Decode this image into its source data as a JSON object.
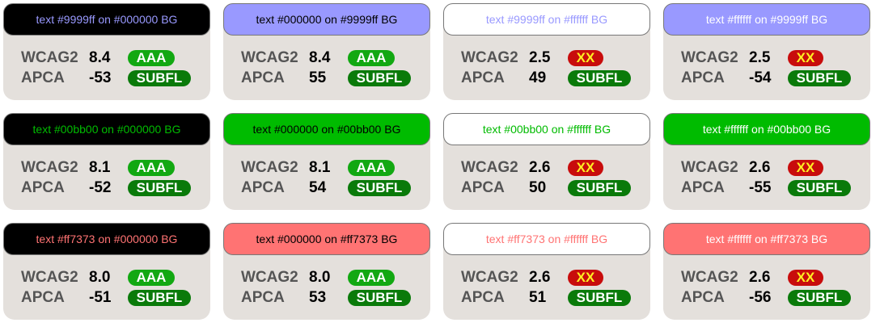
{
  "row_labels": {
    "wcag": "WCAG2",
    "apca": "APCA"
  },
  "cards": [
    {
      "header": "text #9999ff on #000000 BG",
      "fg": "#9999ff",
      "bg": "#000000",
      "wcag": "8.4",
      "wcag_badge": "AAA",
      "apca": "-53",
      "apca_badge": "SUBFL"
    },
    {
      "header": "text #000000 on #9999ff BG",
      "fg": "#000000",
      "bg": "#9999ff",
      "wcag": "8.4",
      "wcag_badge": "AAA",
      "apca": "55",
      "apca_badge": "SUBFL"
    },
    {
      "header": "text #9999ff on #ffffff BG",
      "fg": "#9999ff",
      "bg": "#ffffff",
      "wcag": "2.5",
      "wcag_badge": "XX",
      "apca": "49",
      "apca_badge": "SUBFL"
    },
    {
      "header": "text #ffffff on #9999ff BG",
      "fg": "#ffffff",
      "bg": "#9999ff",
      "wcag": "2.5",
      "wcag_badge": "XX",
      "apca": "-54",
      "apca_badge": "SUBFL"
    },
    {
      "header": "text #00bb00 on #000000 BG",
      "fg": "#00bb00",
      "bg": "#000000",
      "wcag": "8.1",
      "wcag_badge": "AAA",
      "apca": "-52",
      "apca_badge": "SUBFL"
    },
    {
      "header": "text #000000 on #00bb00 BG",
      "fg": "#000000",
      "bg": "#00bb00",
      "wcag": "8.1",
      "wcag_badge": "AAA",
      "apca": "54",
      "apca_badge": "SUBFL"
    },
    {
      "header": "text #00bb00 on #ffffff BG",
      "fg": "#00bb00",
      "bg": "#ffffff",
      "wcag": "2.6",
      "wcag_badge": "XX",
      "apca": "50",
      "apca_badge": "SUBFL"
    },
    {
      "header": "text #ffffff on #00bb00 BG",
      "fg": "#ffffff",
      "bg": "#00bb00",
      "wcag": "2.6",
      "wcag_badge": "XX",
      "apca": "-55",
      "apca_badge": "SUBFL"
    },
    {
      "header": "text #ff7373 on #000000 BG",
      "fg": "#ff7373",
      "bg": "#000000",
      "wcag": "8.0",
      "wcag_badge": "AAA",
      "apca": "-51",
      "apca_badge": "SUBFL"
    },
    {
      "header": "text #000000 on #ff7373 BG",
      "fg": "#000000",
      "bg": "#ff7373",
      "wcag": "8.0",
      "wcag_badge": "AAA",
      "apca": "53",
      "apca_badge": "SUBFL"
    },
    {
      "header": "text #ff7373 on #ffffff BG",
      "fg": "#ff7373",
      "bg": "#ffffff",
      "wcag": "2.6",
      "wcag_badge": "XX",
      "apca": "51",
      "apca_badge": "SUBFL"
    },
    {
      "header": "text #ffffff on #ff7373 BG",
      "fg": "#ffffff",
      "bg": "#ff7373",
      "wcag": "2.6",
      "wcag_badge": "XX",
      "apca": "-56",
      "apca_badge": "SUBFL"
    }
  ]
}
